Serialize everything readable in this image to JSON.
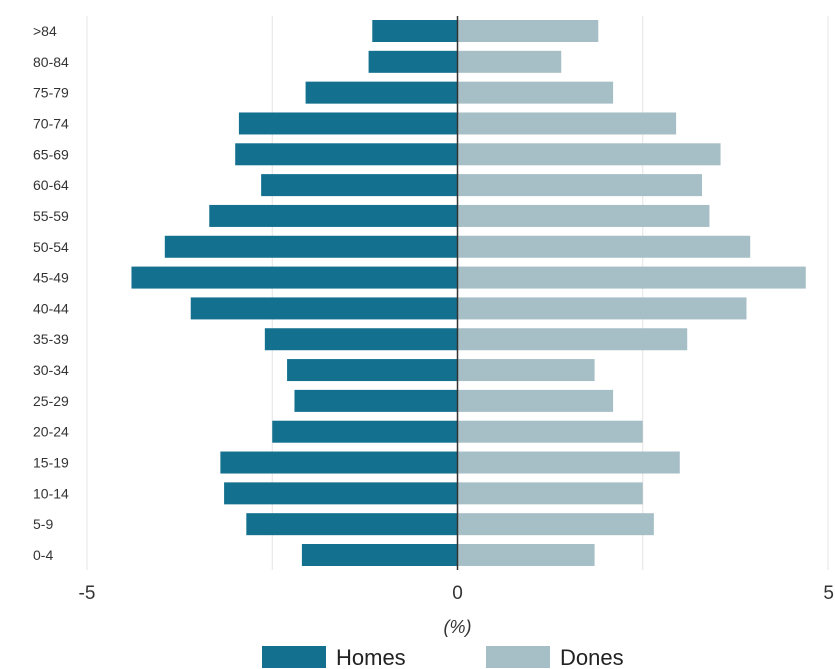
{
  "chart_data": {
    "type": "bar",
    "orientation": "horizontal",
    "subtype": "population-pyramid",
    "categories": [
      "0-4",
      "5-9",
      "10-14",
      "15-19",
      "20-24",
      "25-29",
      "30-34",
      "35-39",
      "40-44",
      "45-49",
      "50-54",
      "55-59",
      "60-64",
      "65-69",
      "70-74",
      "75-79",
      "80-84",
      ">84"
    ],
    "series": [
      {
        "name": "Homes",
        "values": [
          -2.1,
          -2.85,
          -3.15,
          -3.2,
          -2.5,
          -2.2,
          -2.3,
          -2.6,
          -3.6,
          -4.4,
          -3.95,
          -3.35,
          -2.65,
          -3.0,
          -2.95,
          -2.05,
          -1.2,
          -1.15
        ],
        "color": "#13718f"
      },
      {
        "name": "Dones",
        "values": [
          1.85,
          2.65,
          2.5,
          3.0,
          2.5,
          2.1,
          1.85,
          3.1,
          3.9,
          4.7,
          3.95,
          3.4,
          3.3,
          3.55,
          2.95,
          2.1,
          1.4,
          1.9
        ],
        "color": "#a6bfc6"
      }
    ],
    "xlim": [
      -5,
      5
    ],
    "xticks": [
      -5,
      0,
      5
    ],
    "xlabel": "(%)",
    "ylabel": "",
    "grid": true,
    "legend": "bottom"
  }
}
